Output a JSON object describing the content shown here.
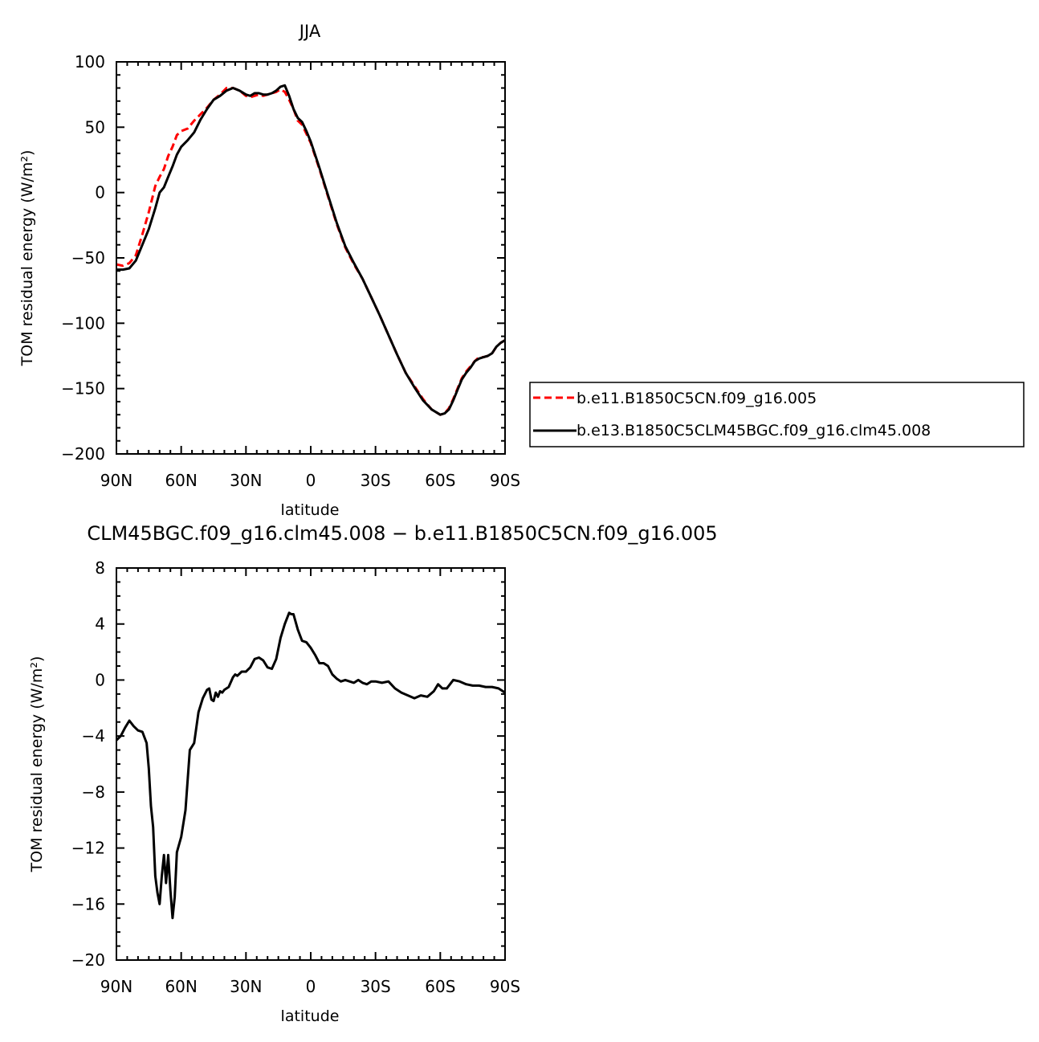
{
  "chart_data": [
    {
      "type": "line",
      "title": "JJA",
      "xlabel": "latitude",
      "ylabel": "TOM residual energy (W/m²)",
      "xlim": [
        90,
        -90
      ],
      "ylim": [
        -200,
        100
      ],
      "xticks": [
        90,
        60,
        30,
        0,
        -30,
        -60,
        -90
      ],
      "xtick_labels": [
        "90N",
        "60N",
        "30N",
        "0",
        "30S",
        "60S",
        "90S"
      ],
      "yticks": [
        -200,
        -150,
        -100,
        -50,
        0,
        50,
        100
      ],
      "ytick_labels": [
        "−200",
        "−150",
        "−100",
        "−50",
        "0",
        "50",
        "100"
      ],
      "legend": "right",
      "series": [
        {
          "name": "b.e11.B1850C5CN.f09_g16.005",
          "color": "#ff0000",
          "dash": "dashed",
          "x": [
            90,
            87,
            84,
            81,
            78,
            75,
            72,
            70,
            68,
            66,
            64,
            62,
            60,
            57,
            54,
            51,
            48,
            45,
            42,
            39,
            36,
            33,
            30,
            28,
            26,
            24,
            22,
            20,
            18,
            16,
            14,
            12,
            10,
            8,
            6,
            4,
            2,
            0,
            -4,
            -8,
            -12,
            -16,
            -20,
            -24,
            -28,
            -32,
            -36,
            -40,
            -44,
            -48,
            -52,
            -56,
            -60,
            -62,
            -64,
            -66,
            -68,
            -70,
            -72,
            -74,
            -76,
            -78,
            -80,
            -82,
            -84,
            -86,
            -88,
            -90
          ],
          "y": [
            -55,
            -56,
            -54,
            -48,
            -32,
            -15,
            5,
            12,
            18,
            28,
            35,
            44,
            47,
            49,
            55,
            60,
            65,
            71,
            75,
            80,
            80,
            78,
            74,
            73,
            74,
            75,
            74,
            75,
            76,
            77,
            79,
            77,
            71,
            64,
            55,
            52,
            45,
            38,
            18,
            -3,
            -24,
            -42,
            -55,
            -66,
            -80,
            -94,
            -109,
            -124,
            -138,
            -148,
            -158,
            -166,
            -170,
            -169,
            -165,
            -158,
            -150,
            -142,
            -137,
            -133,
            -129,
            -126,
            -126,
            -125,
            -123,
            -118,
            -115,
            -113
          ]
        },
        {
          "name": "b.e13.B1850C5CLM45BGC.f09_g16.clm45.008",
          "color": "#000000",
          "dash": "solid",
          "x": [
            90,
            87,
            84,
            81,
            78,
            75,
            72,
            70,
            68,
            66,
            64,
            62,
            60,
            57,
            54,
            51,
            48,
            45,
            42,
            39,
            36,
            33,
            30,
            28,
            26,
            24,
            22,
            20,
            18,
            16,
            14,
            12,
            10,
            8,
            6,
            4,
            2,
            0,
            -4,
            -8,
            -12,
            -16,
            -20,
            -24,
            -28,
            -32,
            -36,
            -40,
            -44,
            -48,
            -52,
            -56,
            -60,
            -62,
            -64,
            -66,
            -68,
            -70,
            -72,
            -74,
            -76,
            -78,
            -80,
            -82,
            -84,
            -86,
            -88,
            -90
          ],
          "y": [
            -59,
            -59,
            -58,
            -52,
            -40,
            -28,
            -12,
            0,
            4,
            12,
            20,
            29,
            35,
            40,
            46,
            56,
            64,
            71,
            74,
            78,
            80,
            78,
            75,
            74,
            76,
            76,
            75,
            75,
            76,
            78,
            81,
            82,
            74,
            64,
            57,
            54,
            47,
            39,
            19,
            -2,
            -23,
            -41,
            -54,
            -66,
            -80,
            -94,
            -109,
            -124,
            -138,
            -149,
            -159,
            -166,
            -170,
            -169,
            -166,
            -159,
            -151,
            -143,
            -138,
            -134,
            -129,
            -127,
            -126,
            -125,
            -123,
            -118,
            -115,
            -113
          ]
        }
      ]
    },
    {
      "type": "line",
      "title": "CLM45BGC.f09_g16.clm45.008 − b.e11.B1850C5CN.f09_g16.005",
      "xlabel": "latitude",
      "ylabel": "TOM residual energy (W/m²)",
      "xlim": [
        90,
        -90
      ],
      "ylim": [
        -20,
        8
      ],
      "xticks": [
        90,
        60,
        30,
        0,
        -30,
        -60,
        -90
      ],
      "xtick_labels": [
        "90N",
        "60N",
        "30N",
        "0",
        "30S",
        "60S",
        "90S"
      ],
      "yticks": [
        -20,
        -16,
        -12,
        -8,
        -4,
        0,
        4,
        8
      ],
      "ytick_labels": [
        "−20",
        "−16",
        "−12",
        "−8",
        "−4",
        "0",
        "4",
        "8"
      ],
      "series": [
        {
          "color": "#000000",
          "dash": "solid",
          "x": [
            90,
            88,
            86,
            84,
            82,
            80,
            78,
            76,
            75,
            74,
            73,
            72,
            71,
            70,
            69,
            68,
            67,
            66,
            65,
            64,
            63,
            62,
            60,
            58,
            56,
            54,
            52,
            50,
            48,
            47,
            46,
            45,
            44,
            43,
            42,
            41,
            40,
            38,
            36,
            35,
            34,
            32,
            30,
            28,
            26,
            24,
            22,
            20,
            18,
            16,
            14,
            12,
            10,
            9,
            8,
            6,
            4,
            2,
            0,
            -2,
            -4,
            -6,
            -8,
            -10,
            -12,
            -14,
            -16,
            -18,
            -20,
            -22,
            -24,
            -26,
            -28,
            -30,
            -33,
            -36,
            -39,
            -42,
            -45,
            -48,
            -51,
            -54,
            -57,
            -59,
            -61,
            -63,
            -66,
            -69,
            -72,
            -75,
            -78,
            -81,
            -84,
            -87,
            -90
          ],
          "y": [
            -4.3,
            -4.0,
            -3.4,
            -2.9,
            -3.3,
            -3.6,
            -3.7,
            -4.5,
            -6.3,
            -9,
            -10.5,
            -14,
            -15.2,
            -16,
            -14,
            -12.5,
            -14.5,
            -12.5,
            -15,
            -17,
            -15.5,
            -12.3,
            -11.2,
            -9.3,
            -5,
            -4.5,
            -2.3,
            -1.3,
            -0.7,
            -0.6,
            -1.4,
            -1.5,
            -0.9,
            -1.2,
            -0.8,
            -0.9,
            -0.7,
            -0.5,
            0.2,
            0.4,
            0.3,
            0.6,
            0.6,
            0.9,
            1.5,
            1.6,
            1.4,
            0.9,
            0.8,
            1.5,
            3.0,
            4.0,
            4.8,
            4.7,
            4.7,
            3.6,
            2.8,
            2.7,
            2.3,
            1.8,
            1.2,
            1.2,
            1.0,
            0.4,
            0.1,
            -0.1,
            0.0,
            -0.1,
            -0.2,
            0.0,
            -0.2,
            -0.3,
            -0.1,
            -0.1,
            -0.2,
            -0.1,
            -0.6,
            -0.9,
            -1.1,
            -1.3,
            -1.1,
            -1.2,
            -0.8,
            -0.3,
            -0.6,
            -0.6,
            0.0,
            -0.1,
            -0.3,
            -0.4,
            -0.4,
            -0.5,
            -0.5,
            -0.6,
            -0.9
          ]
        }
      ]
    }
  ]
}
